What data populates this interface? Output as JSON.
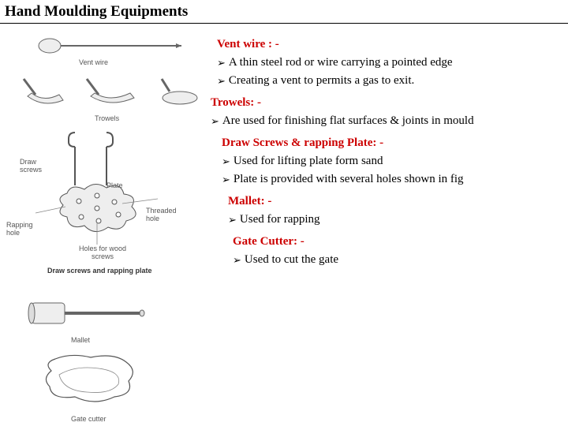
{
  "title": "Hand Moulding Equipments",
  "sections": [
    {
      "heading": "Vent wire : -",
      "heading_color": "#cc0000",
      "indent": 0,
      "bullets": [
        "A thin steel rod or wire carrying a pointed edge",
        "Creating a vent to permits a gas to exit."
      ]
    },
    {
      "heading": "Trowels: -",
      "heading_color": "#cc0000",
      "indent": -8,
      "bullets": [
        "Are used for finishing flat surfaces & joints in mould"
      ]
    },
    {
      "heading": "Draw Screws & rapping Plate: -",
      "heading_color": "#cc0000",
      "indent": 6,
      "bullets": [
        "Used for lifting plate form sand",
        "Plate is provided with several holes shown in fig"
      ]
    },
    {
      "heading": "Mallet: -",
      "heading_color": "#cc0000",
      "indent": 14,
      "bullets": [
        "Used for rapping"
      ]
    },
    {
      "heading": "Gate Cutter: -",
      "heading_color": "#cc0000",
      "indent": 20,
      "bullets": [
        "Used to cut the gate"
      ]
    }
  ],
  "illustration_labels": {
    "vent_wire": "Vent wire",
    "trowels": "Trowels",
    "draw_screws": "Draw screws",
    "plate": "Plate",
    "rapping_hole": "Rapping hole",
    "threaded_hole": "Threaded hole",
    "holes_for_wood": "Holes for wood screws",
    "draw_plate_caption": "Draw screws and rapping plate",
    "mallet": "Mallet",
    "gate_cutter": "Gate cutter"
  },
  "colors": {
    "heading_red": "#cc0000",
    "text_black": "#000000",
    "stroke_gray": "#666666",
    "fill_light": "#eeeeee"
  }
}
